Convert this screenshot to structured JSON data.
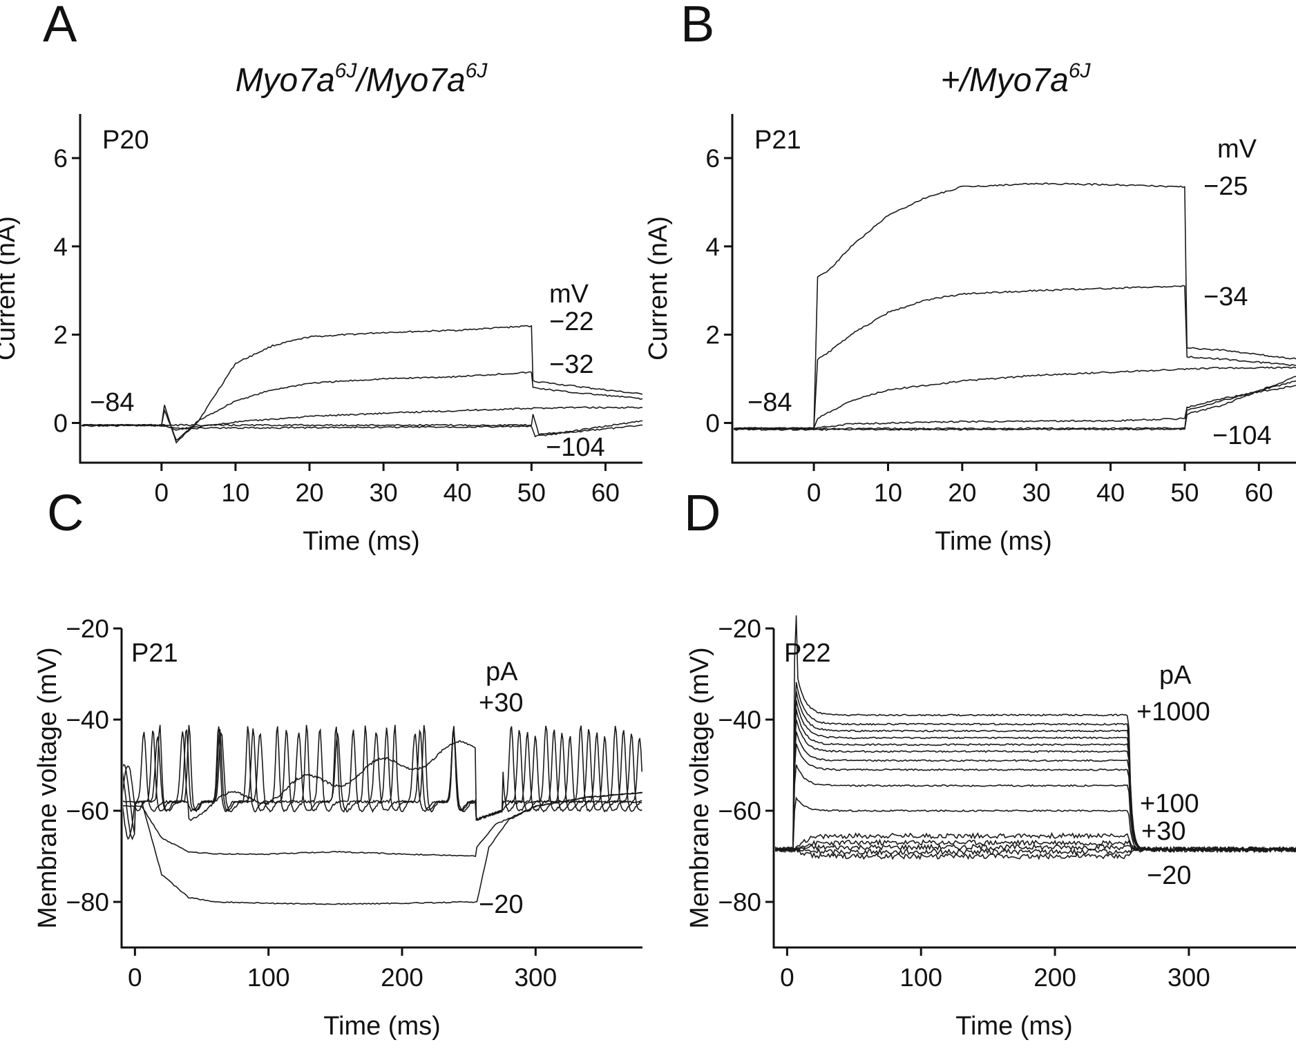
{
  "chart_data": [
    {
      "panel": "A",
      "type": "line",
      "title_main": "Myo7a",
      "title_sup": "6J",
      "title_sep": "/",
      "xlabel": "Time (ms)",
      "ylabel": "Current (nA)",
      "xlim": [
        -11,
        65
      ],
      "ylim": [
        -0.9,
        7.0
      ],
      "xticks": [
        0,
        10,
        20,
        30,
        40,
        50,
        60
      ],
      "yticks": [
        0,
        2,
        4,
        6
      ],
      "age": "P20",
      "holding_label": "−84",
      "units_label": "mV",
      "step_labels": [
        "−22",
        "−32",
        "−104"
      ],
      "series": [
        {
          "values": [
            [
              -11,
              -0.05
            ],
            [
              0,
              -0.05
            ],
            [
              0.4,
              0.4
            ],
            [
              2,
              -0.45
            ],
            [
              5,
              0.05
            ],
            [
              10,
              1.35
            ],
            [
              15,
              1.75
            ],
            [
              20,
              1.95
            ],
            [
              30,
              2.05
            ],
            [
              40,
              2.1
            ],
            [
              50,
              2.2
            ],
            [
              50.2,
              0.95
            ],
            [
              55,
              0.85
            ],
            [
              65,
              0.65
            ]
          ]
        },
        {
          "values": [
            [
              -11,
              -0.05
            ],
            [
              0,
              -0.05
            ],
            [
              0.4,
              0.3
            ],
            [
              2,
              -0.4
            ],
            [
              5,
              0.05
            ],
            [
              10,
              0.5
            ],
            [
              15,
              0.75
            ],
            [
              20,
              0.9
            ],
            [
              30,
              1.0
            ],
            [
              40,
              1.05
            ],
            [
              50,
              1.15
            ],
            [
              50.2,
              0.8
            ],
            [
              55,
              0.7
            ],
            [
              65,
              0.55
            ]
          ]
        },
        {
          "values": [
            [
              -11,
              -0.05
            ],
            [
              0,
              -0.05
            ],
            [
              2,
              -0.15
            ],
            [
              10,
              0.02
            ],
            [
              20,
              0.15
            ],
            [
              30,
              0.22
            ],
            [
              40,
              0.28
            ],
            [
              50,
              0.33
            ],
            [
              55,
              0.35
            ],
            [
              65,
              0.35
            ]
          ]
        },
        {
          "values": [
            [
              -11,
              -0.05
            ],
            [
              0,
              -0.05
            ],
            [
              5,
              -0.05
            ],
            [
              50,
              -0.05
            ],
            [
              50.2,
              0.2
            ],
            [
              51,
              -0.25
            ],
            [
              55,
              -0.2
            ],
            [
              65,
              0.05
            ]
          ]
        },
        {
          "values": [
            [
              -11,
              -0.06
            ],
            [
              0,
              -0.06
            ],
            [
              2,
              -0.12
            ],
            [
              50,
              -0.08
            ],
            [
              50.5,
              -0.3
            ],
            [
              55,
              -0.22
            ],
            [
              65,
              -0.05
            ]
          ]
        }
      ]
    },
    {
      "panel": "B",
      "type": "line",
      "title_prefix": "+/",
      "title_main": "Myo7a",
      "title_sup": "6J",
      "xlabel": "Time (ms)",
      "ylabel": "Current (nA)",
      "xlim": [
        -11,
        65
      ],
      "ylim": [
        -0.9,
        7.0
      ],
      "xticks": [
        0,
        10,
        20,
        30,
        40,
        50,
        60
      ],
      "yticks": [
        0,
        2,
        4,
        6
      ],
      "age": "P21",
      "holding_label": "−84",
      "units_label": "mV",
      "step_labels": [
        "−25",
        "−34",
        "−104"
      ],
      "series": [
        {
          "values": [
            [
              -11,
              -0.12
            ],
            [
              0,
              -0.12
            ],
            [
              0.5,
              3.3
            ],
            [
              2,
              3.45
            ],
            [
              5,
              4.0
            ],
            [
              10,
              4.7
            ],
            [
              15,
              5.1
            ],
            [
              20,
              5.35
            ],
            [
              30,
              5.42
            ],
            [
              40,
              5.4
            ],
            [
              50,
              5.35
            ],
            [
              50.3,
              1.7
            ],
            [
              55,
              1.65
            ],
            [
              60,
              1.55
            ],
            [
              65,
              1.45
            ]
          ]
        },
        {
          "values": [
            [
              -11,
              -0.12
            ],
            [
              0,
              -0.12
            ],
            [
              0.5,
              1.45
            ],
            [
              2,
              1.6
            ],
            [
              5,
              2.0
            ],
            [
              10,
              2.5
            ],
            [
              15,
              2.78
            ],
            [
              20,
              2.92
            ],
            [
              30,
              3.0
            ],
            [
              40,
              3.05
            ],
            [
              50,
              3.1
            ],
            [
              50.3,
              1.5
            ],
            [
              55,
              1.45
            ],
            [
              65,
              1.3
            ]
          ]
        },
        {
          "values": [
            [
              -11,
              -0.12
            ],
            [
              0,
              -0.12
            ],
            [
              0.5,
              0.1
            ],
            [
              5,
              0.5
            ],
            [
              10,
              0.75
            ],
            [
              20,
              0.95
            ],
            [
              30,
              1.08
            ],
            [
              40,
              1.15
            ],
            [
              50,
              1.22
            ],
            [
              55,
              1.25
            ],
            [
              65,
              1.25
            ]
          ]
        },
        {
          "values": [
            [
              -11,
              -0.12
            ],
            [
              0,
              -0.12
            ],
            [
              5,
              -0.02
            ],
            [
              20,
              0.03
            ],
            [
              40,
              0.05
            ],
            [
              50,
              0.1
            ],
            [
              50.3,
              0.35
            ],
            [
              55,
              0.55
            ],
            [
              65,
              0.85
            ]
          ]
        },
        {
          "values": [
            [
              -11,
              -0.13
            ],
            [
              0,
              -0.13
            ],
            [
              50,
              -0.12
            ],
            [
              50.3,
              0.3
            ],
            [
              55,
              0.5
            ],
            [
              65,
              0.95
            ]
          ]
        },
        {
          "values": [
            [
              -11,
              -0.15
            ],
            [
              0,
              -0.15
            ],
            [
              50,
              -0.14
            ],
            [
              50.3,
              0.2
            ],
            [
              55,
              0.4
            ],
            [
              65,
              1.05
            ]
          ]
        }
      ]
    },
    {
      "panel": "C",
      "type": "line",
      "xlabel": "Time (ms)",
      "ylabel": "Membrane voltage (mV)",
      "xlim": [
        -10,
        380
      ],
      "ylim": [
        -90,
        -20
      ],
      "xticks": [
        0,
        100,
        200,
        300
      ],
      "yticks": [
        -80,
        -60,
        -40,
        -20
      ],
      "ytick_labels": [
        "−80",
        "−60",
        "−40",
        "−20"
      ],
      "age": "P21",
      "units_label": "pA",
      "step_labels": [
        "+30",
        "−20"
      ],
      "series": [
        {
          "values": [
            [
              -10,
              -58
            ],
            [
              5,
              -58
            ],
            [
              20,
              -74
            ],
            [
              40,
              -79
            ],
            [
              60,
              -80
            ],
            [
              100,
              -80.3
            ],
            [
              150,
              -80.5
            ],
            [
              200,
              -80.3
            ],
            [
              255,
              -80
            ],
            [
              256,
              -80
            ],
            [
              265,
              -68
            ],
            [
              280,
              -62
            ],
            [
              300,
              -59
            ],
            [
              340,
              -57
            ],
            [
              380,
              -56
            ]
          ]
        },
        {
          "values": [
            [
              -10,
              -59
            ],
            [
              5,
              -59
            ],
            [
              20,
              -66
            ],
            [
              40,
              -69
            ],
            [
              60,
              -69.5
            ],
            [
              100,
              -69.5
            ],
            [
              150,
              -69
            ],
            [
              200,
              -69.5
            ],
            [
              255,
              -70
            ],
            [
              256,
              -68
            ],
            [
              270,
              -63
            ],
            [
              300,
              -59
            ],
            [
              340,
              -57
            ],
            [
              380,
              -56
            ]
          ]
        },
        {
          "spiking": true,
          "start": -10,
          "end": 380,
          "base": -58,
          "peak": -41,
          "trough": -60,
          "period": 22,
          "phase": 0
        }
      ]
    },
    {
      "panel": "D",
      "type": "line",
      "xlabel": "Time (ms)",
      "ylabel": "Membrane voltage (mV)",
      "xlim": [
        -10,
        380
      ],
      "ylim": [
        -90,
        -20
      ],
      "xticks": [
        0,
        100,
        200,
        300
      ],
      "yticks": [
        -80,
        -60,
        -40,
        -20
      ],
      "ytick_labels": [
        "−80",
        "−60",
        "−40",
        "−20"
      ],
      "age": "P22",
      "units_label": "pA",
      "step_labels": [
        "+1000",
        "+100",
        "+30",
        "−20"
      ],
      "series": [
        {
          "steady": -39.0
        },
        {
          "steady": -41.0
        },
        {
          "steady": -42.5
        },
        {
          "steady": -44.0
        },
        {
          "steady": -45.5
        },
        {
          "steady": -47.0
        },
        {
          "steady": -49.0
        },
        {
          "steady": -51.0
        },
        {
          "steady": -54.5
        },
        {
          "steady": -60.0
        },
        {
          "steady": -65.5
        },
        {
          "steady": -67.0
        },
        {
          "steady": -68.0
        },
        {
          "steady": -69.0
        },
        {
          "steady": -70.0
        }
      ]
    }
  ]
}
